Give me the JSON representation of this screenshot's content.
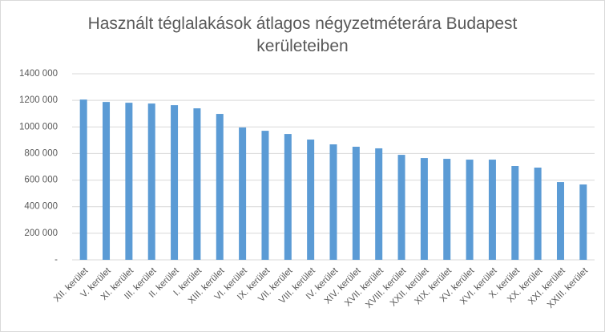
{
  "chart_data": {
    "type": "bar",
    "title": "Használt téglalakások átlagos négyzetméterára Budapest kerületeiben",
    "categories": [
      "XII. kerület",
      "V. kerület",
      "XI. kerület",
      "III. kerület",
      "II. kerület",
      "I. kerület",
      "XIII. kerület",
      "VI. kerület",
      "IX. kerület",
      "VII. kerület",
      "VIII. kerület",
      "IV. kerület",
      "XIV. kerület",
      "XVII. kerület",
      "XVIII. kerület",
      "XXII. kerület",
      "XIX. kerület",
      "XV. kerület",
      "XVI. kerület",
      "X. kerület",
      "XX. kerület",
      "XXI. kerület",
      "XXIII. kerület"
    ],
    "values": [
      1206000,
      1188000,
      1182000,
      1176000,
      1164000,
      1140000,
      1098000,
      996000,
      971000,
      947000,
      905000,
      869000,
      851000,
      839000,
      790000,
      766000,
      760000,
      754000,
      754000,
      706000,
      694000,
      585000,
      567000
    ],
    "color": "#5b9bd5",
    "ylim": [
      0,
      1400000
    ],
    "yticks": [
      {
        "value": 0,
        "label": "-"
      },
      {
        "value": 200000,
        "label": "200 000"
      },
      {
        "value": 400000,
        "label": "400 000"
      },
      {
        "value": 600000,
        "label": "600 000"
      },
      {
        "value": 800000,
        "label": "800 000"
      },
      {
        "value": 1000000,
        "label": "1000 000"
      },
      {
        "value": 1200000,
        "label": "1200 000"
      },
      {
        "value": 1400000,
        "label": "1400 000"
      }
    ],
    "grid": true
  }
}
